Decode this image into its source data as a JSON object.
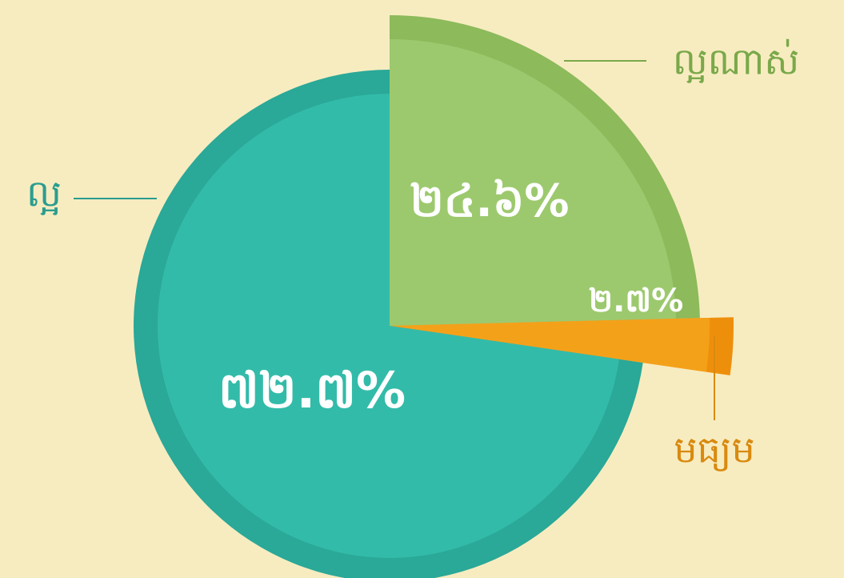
{
  "chart_data": {
    "type": "pie",
    "categories": [
      "ល្អណាស់",
      "មធ្យម",
      "ល្អ"
    ],
    "values": [
      24.6,
      2.7,
      72.7
    ],
    "value_labels": [
      "២៤.៦%",
      "២.៧%",
      "៧២.៧%"
    ],
    "colors": [
      "#9dc96e",
      "#f4a11a",
      "#33bba9"
    ]
  }
}
